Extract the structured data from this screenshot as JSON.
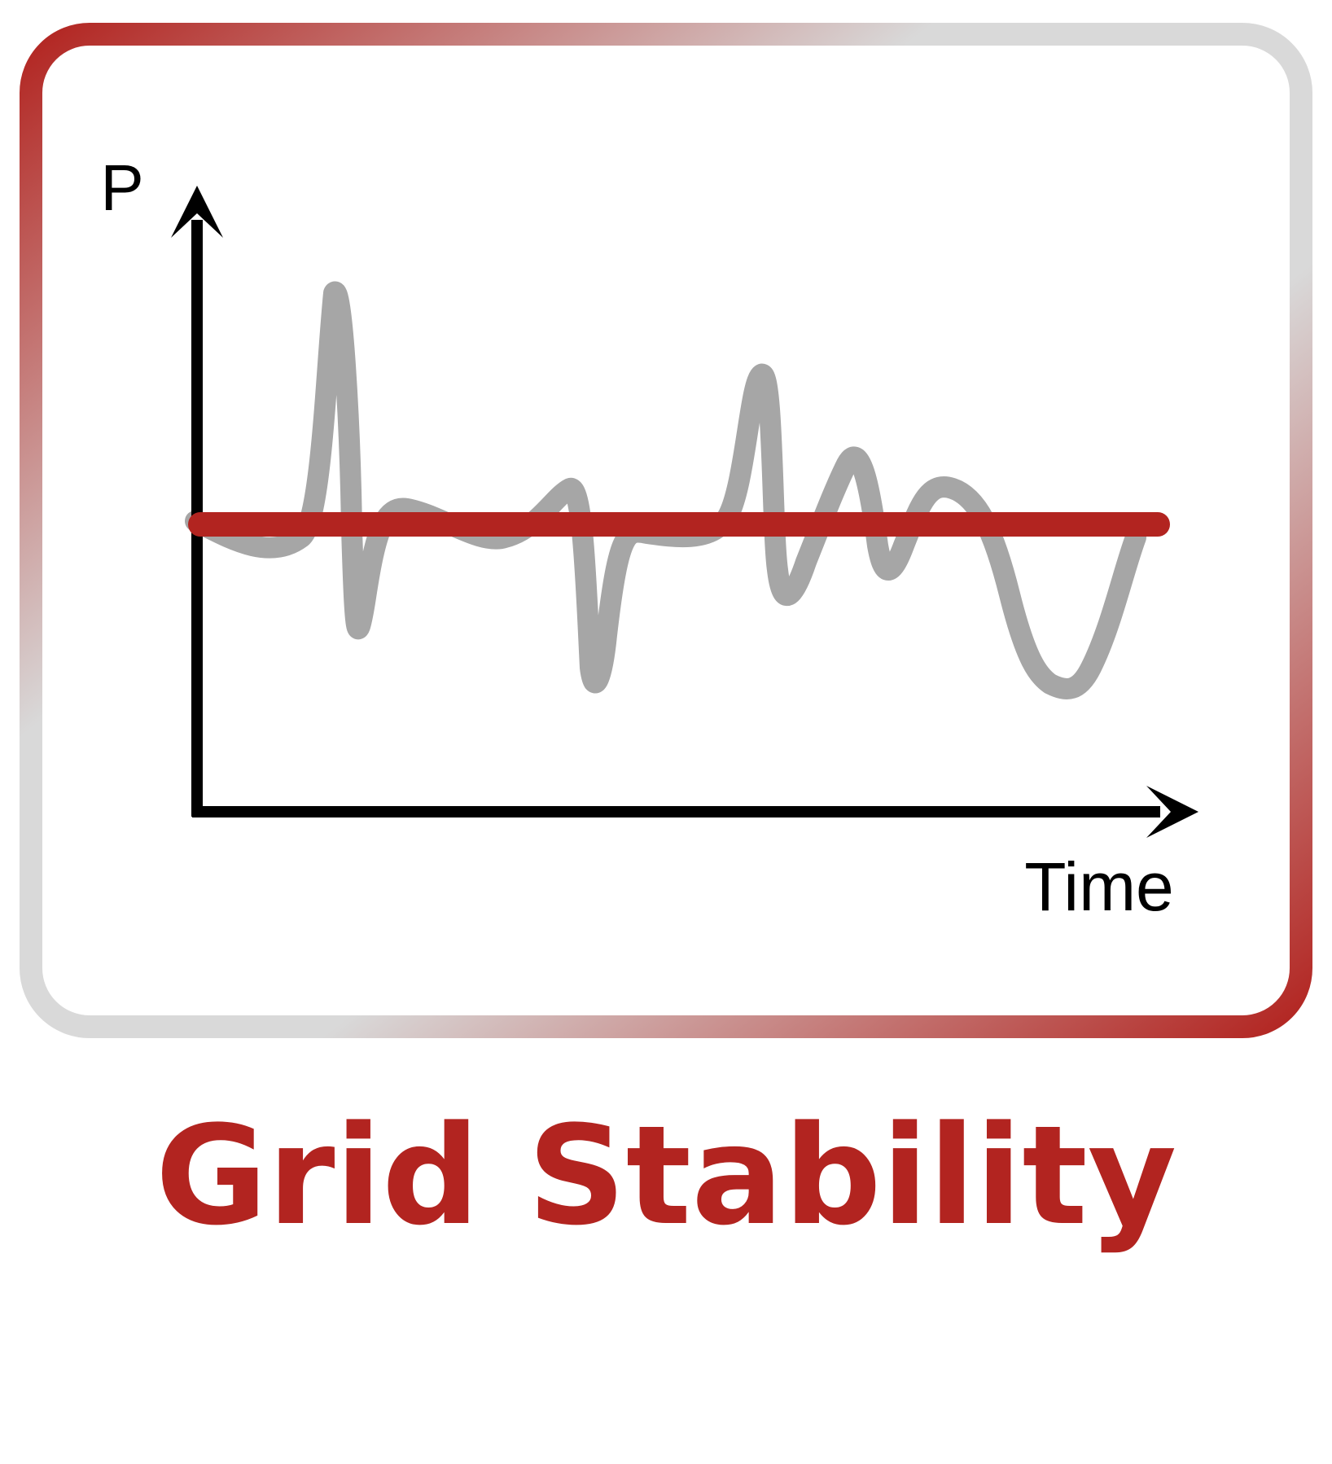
{
  "title": "Grid Stability",
  "axes": {
    "y_label": "P",
    "x_label": "Time"
  },
  "colors": {
    "accent": "#B22420",
    "frame_light": "#D9D9D9",
    "fluctuating_line": "#A6A6A6",
    "axis": "#000000",
    "background": "#FFFFFF"
  },
  "icon": "grid-stability-icon"
}
